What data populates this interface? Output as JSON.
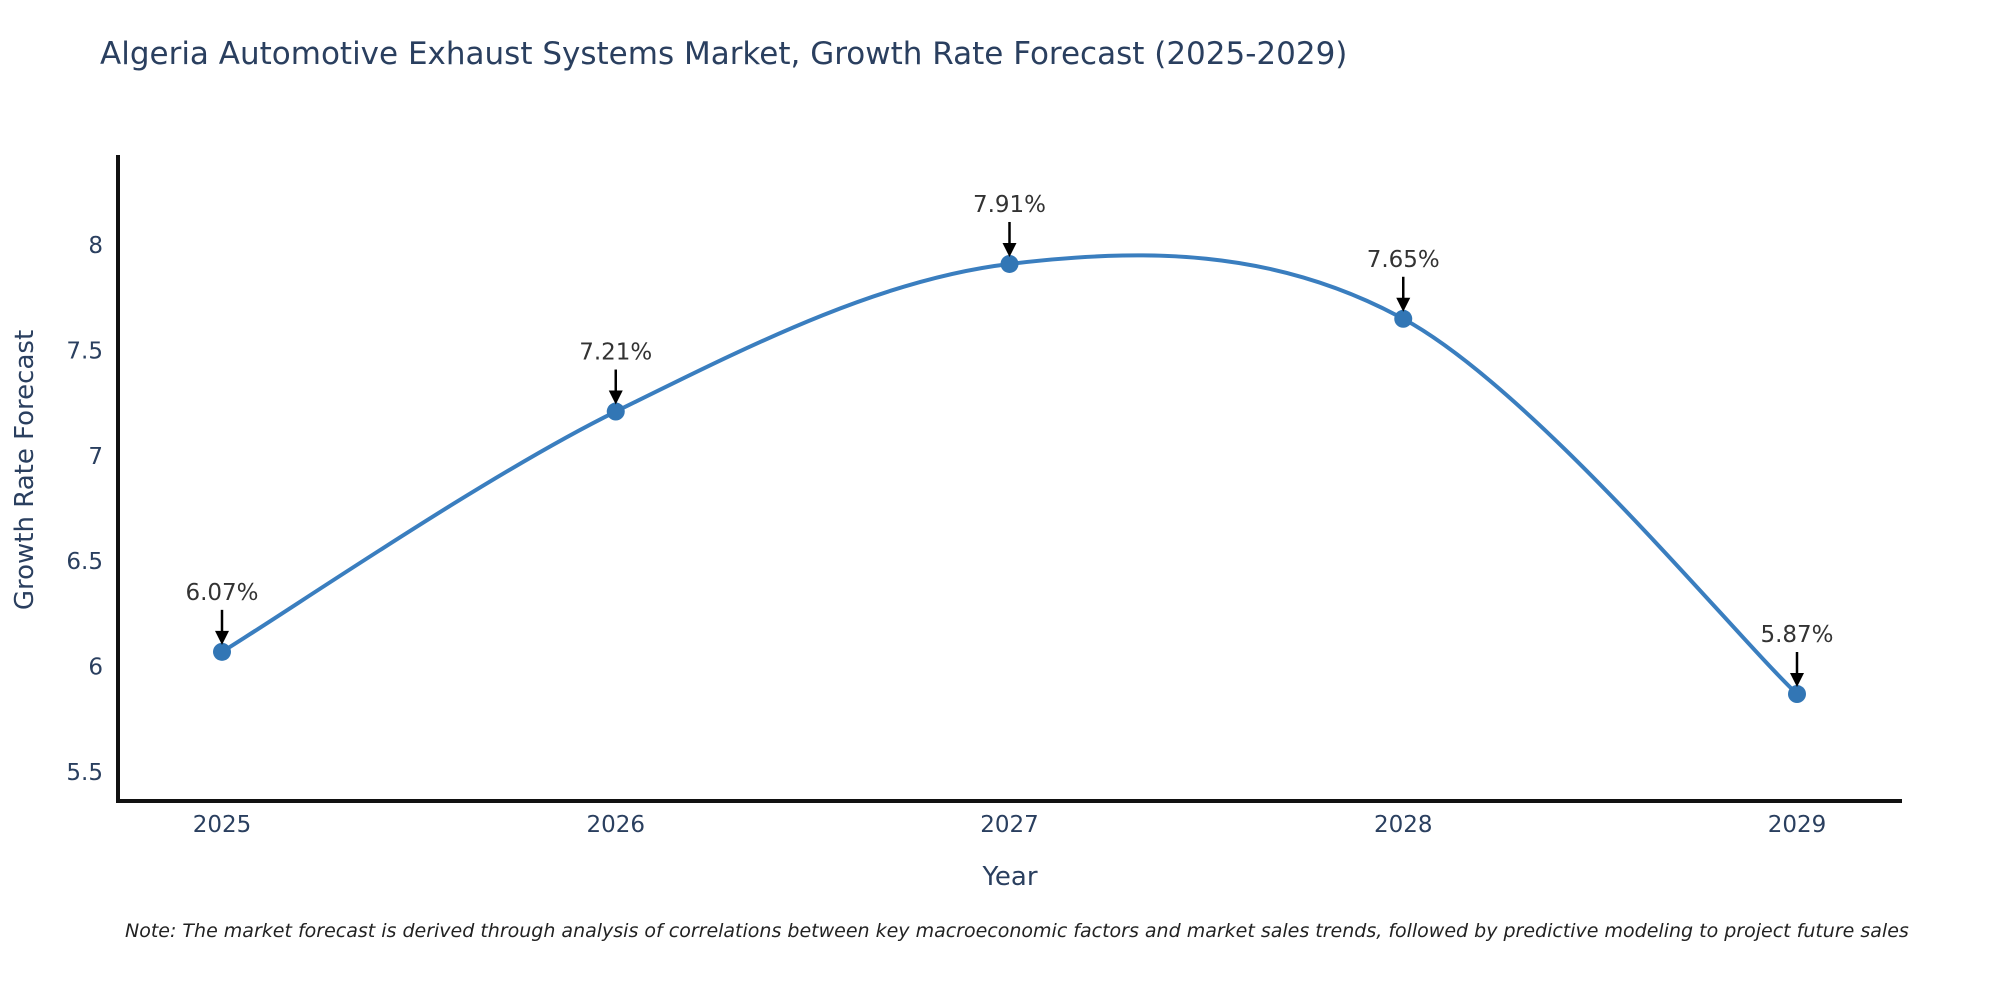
{
  "title": "Algeria Automotive Exhaust Systems Market, Growth Rate Forecast (2025-2029)",
  "note": "Note: The market forecast is derived through analysis of correlations between key macroeconomic factors and market sales trends, followed by predictive modeling to project future sales",
  "chart_data": {
    "type": "line",
    "line_shape": "spline",
    "x": [
      "2025",
      "2026",
      "2027",
      "2028",
      "2029"
    ],
    "series": [
      {
        "name": "Growth Rate Forecast",
        "values": [
          6.07,
          7.21,
          7.91,
          7.65,
          5.87
        ]
      }
    ],
    "point_labels": [
      "6.07%",
      "7.21%",
      "7.91%",
      "7.65%",
      "5.87%"
    ],
    "title": "Algeria Automotive Exhaust Systems Market, Growth Rate Forecast (2025-2029)",
    "xlabel": "Year",
    "ylabel": "Growth Rate Forecast",
    "yticks": [
      5.5,
      6,
      6.5,
      7,
      7.5,
      8
    ],
    "ylim": [
      5.37,
      8.43
    ],
    "grid": false,
    "legend": "none",
    "annotations": "value labels with down arrows above each point",
    "colors": {
      "line": "#3a7ebf",
      "marker": "#3276b5",
      "axis_line": "#111111",
      "tick_text": "#2a3f5f",
      "title_text": "#2a3f5f",
      "annotation_text": "#333333",
      "annotation_arrow": "#000000",
      "background": "#ffffff"
    }
  }
}
